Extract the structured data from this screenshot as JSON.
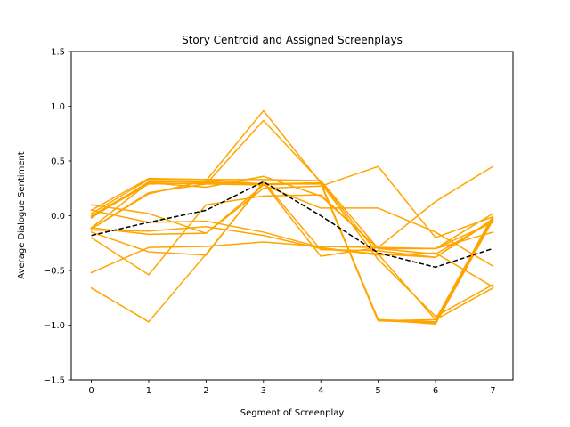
{
  "chart_data": {
    "type": "line",
    "title": "Story Centroid and Assigned Screenplays",
    "xlabel": "Segment of Screenplay",
    "ylabel": "Average Dialogue Sentiment",
    "x": [
      0,
      1,
      2,
      3,
      4,
      5,
      6,
      7
    ],
    "xlim": [
      -0.35,
      7.35
    ],
    "ylim": [
      -1.5,
      1.5
    ],
    "xticks": [
      0,
      1,
      2,
      3,
      4,
      5,
      6,
      7
    ],
    "yticks": [
      1.5,
      1.0,
      0.5,
      0.0,
      -0.5,
      -1.0,
      -1.5
    ],
    "ytick_labels": [
      "1.5",
      "1.0",
      "0.5",
      "0.0",
      "−0.5",
      "−1.0",
      "−1.5"
    ],
    "grid": false,
    "series_color": "#ffa500",
    "centroid_color": "#000000",
    "series": [
      {
        "values": [
          0.02,
          0.33,
          0.33,
          0.29,
          0.29,
          -0.96,
          -0.95,
          0.0
        ]
      },
      {
        "values": [
          -0.02,
          0.31,
          0.31,
          0.29,
          0.3,
          -0.95,
          -0.97,
          -0.02
        ]
      },
      {
        "values": [
          -0.01,
          0.29,
          0.3,
          0.29,
          0.3,
          -0.96,
          -0.98,
          -0.03
        ]
      },
      {
        "values": [
          0.0,
          0.3,
          0.29,
          0.28,
          0.3,
          -0.95,
          -0.99,
          -0.04
        ]
      },
      {
        "values": [
          -0.12,
          0.2,
          0.32,
          0.96,
          0.3,
          -0.4,
          -0.92,
          -0.63
        ]
      },
      {
        "values": [
          -0.12,
          0.21,
          0.29,
          0.87,
          0.31,
          -0.35,
          -0.95,
          -0.66
        ]
      },
      {
        "values": [
          0.05,
          0.34,
          0.33,
          0.33,
          0.32,
          -0.3,
          -0.3,
          0.02
        ]
      },
      {
        "values": [
          -0.11,
          0.3,
          0.26,
          0.36,
          0.18,
          -0.3,
          -0.3,
          -0.06
        ]
      },
      {
        "values": [
          -0.66,
          -0.97,
          -0.35,
          0.3,
          -0.37,
          -0.29,
          -0.3,
          -0.15
        ]
      },
      {
        "values": [
          -0.52,
          -0.29,
          -0.28,
          -0.24,
          -0.28,
          -0.29,
          0.13,
          0.45
        ]
      },
      {
        "values": [
          -0.2,
          -0.54,
          0.1,
          0.18,
          0.19,
          -0.3,
          -0.35,
          -0.05
        ]
      },
      {
        "values": [
          0.1,
          0.02,
          -0.16,
          0.28,
          0.07,
          0.07,
          -0.15,
          -0.46
        ]
      },
      {
        "values": [
          -0.11,
          -0.17,
          -0.16,
          0.25,
          0.27,
          0.45,
          -0.2,
          -0.01
        ]
      },
      {
        "values": [
          -0.13,
          -0.14,
          -0.1,
          -0.18,
          -0.3,
          -0.35,
          -0.38,
          -0.03
        ]
      },
      {
        "values": [
          -0.15,
          -0.33,
          -0.36,
          0.31,
          -0.31,
          -0.32,
          -0.38,
          -0.04
        ]
      },
      {
        "values": [
          0.05,
          -0.06,
          -0.05,
          -0.15,
          -0.29,
          -0.36,
          -0.34,
          -0.65
        ]
      }
    ],
    "centroid": {
      "values": [
        -0.18,
        -0.06,
        0.05,
        0.31,
        0.0,
        -0.34,
        -0.47,
        -0.3
      ]
    }
  }
}
